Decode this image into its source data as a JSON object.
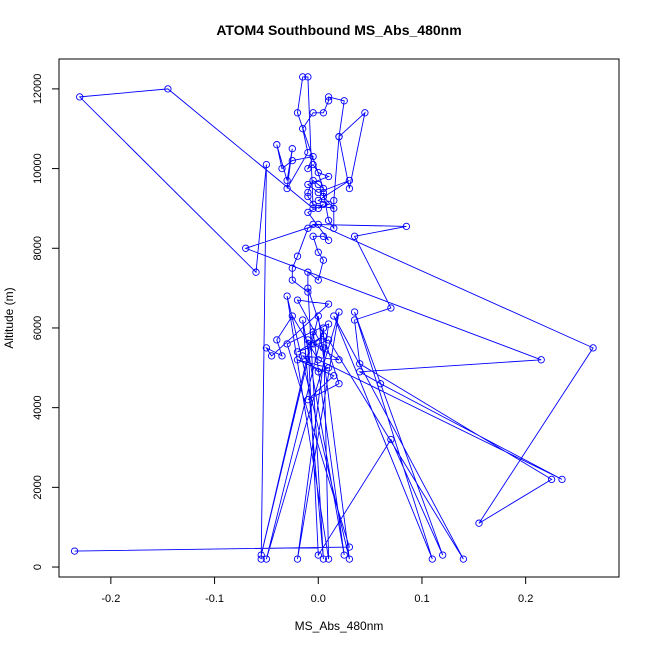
{
  "chart_data": {
    "type": "line",
    "title": "ATOM4 Southbound MS_Abs_480nm",
    "xlabel": "MS_Abs_480nm",
    "ylabel": "Altitude (m)",
    "xlim": [
      -0.25,
      0.29
    ],
    "ylim": [
      -250,
      12750
    ],
    "xticks": [
      -0.2,
      -0.1,
      0.0,
      0.1,
      0.2
    ],
    "xtick_labels": [
      "-0.2",
      "-0.1",
      "0.0",
      "0.1",
      "0.2"
    ],
    "yticks": [
      0,
      2000,
      4000,
      6000,
      8000,
      10000,
      12000
    ],
    "ytick_labels": [
      "0",
      "2000",
      "4000",
      "6000",
      "8000",
      "10000",
      "12000"
    ],
    "grid": false,
    "series": [
      {
        "color": "#0000ff",
        "marker": "open-circle",
        "points": [
          [
            -0.235,
            400
          ],
          [
            0.03,
            500
          ],
          [
            -0.03,
            5600
          ],
          [
            0.01,
            6100
          ],
          [
            -0.02,
            200
          ],
          [
            0.02,
            6400
          ],
          [
            -0.05,
            200
          ],
          [
            0.005,
            6000
          ],
          [
            0.01,
            200
          ],
          [
            -0.03,
            6800
          ],
          [
            0.03,
            200
          ],
          [
            0.0,
            6300
          ],
          [
            -0.055,
            300
          ],
          [
            -0.005,
            5900
          ],
          [
            0.025,
            300
          ],
          [
            -0.015,
            6200
          ],
          [
            0.005,
            200
          ],
          [
            -0.01,
            7000
          ],
          [
            0.02,
            4600
          ],
          [
            -0.01,
            4200
          ],
          [
            0.015,
            4800
          ],
          [
            -0.02,
            5200
          ],
          [
            0.01,
            5000
          ],
          [
            0.0,
            4900
          ],
          [
            -0.015,
            5300
          ],
          [
            0.02,
            5200
          ],
          [
            -0.005,
            5600
          ],
          [
            0.005,
            5800
          ],
          [
            -0.02,
            5400
          ],
          [
            0.01,
            5700
          ],
          [
            0.14,
            200
          ],
          [
            0.015,
            6300
          ],
          [
            0.11,
            200
          ],
          [
            0.035,
            6400
          ],
          [
            0.12,
            300
          ],
          [
            0.07,
            3200
          ],
          [
            0.0,
            300
          ],
          [
            -0.01,
            5700
          ],
          [
            0.005,
            5500
          ],
          [
            -0.02,
            6700
          ],
          [
            0.01,
            6600
          ],
          [
            -0.045,
            5300
          ],
          [
            -0.05,
            5500
          ],
          [
            -0.035,
            5300
          ],
          [
            -0.04,
            5700
          ],
          [
            -0.025,
            6300
          ],
          [
            0.0,
            5200
          ],
          [
            0.235,
            2200
          ],
          [
            0.06,
            4600
          ],
          [
            0.04,
            4900
          ],
          [
            0.215,
            5200
          ],
          [
            -0.07,
            8000
          ],
          [
            0.0,
            8600
          ],
          [
            0.265,
            5500
          ],
          [
            0.155,
            1100
          ],
          [
            0.225,
            2200
          ],
          [
            0.04,
            5100
          ],
          [
            0.035,
            6200
          ],
          [
            0.07,
            6500
          ],
          [
            0.035,
            8300
          ],
          [
            0.085,
            8550
          ],
          [
            -0.005,
            8600
          ],
          [
            -0.01,
            8500
          ],
          [
            -0.02,
            7800
          ],
          [
            -0.025,
            7500
          ],
          [
            -0.025,
            7200
          ],
          [
            -0.01,
            6900
          ],
          [
            -0.01,
            7400
          ],
          [
            0.0,
            7200
          ],
          [
            0.005,
            7700
          ],
          [
            0.0,
            7900
          ],
          [
            -0.005,
            8300
          ],
          [
            0.005,
            8300
          ],
          [
            0.01,
            8200
          ],
          [
            -0.01,
            8900
          ],
          [
            0.005,
            9100
          ],
          [
            0.0,
            9000
          ],
          [
            0.01,
            9100
          ],
          [
            0.0,
            9200
          ],
          [
            0.03,
            9700
          ],
          [
            0.0,
            9400
          ],
          [
            -0.01,
            9600
          ],
          [
            0.01,
            9800
          ],
          [
            0.0,
            9900
          ],
          [
            -0.005,
            10100
          ],
          [
            -0.01,
            10000
          ],
          [
            -0.005,
            10300
          ],
          [
            -0.025,
            10200
          ],
          [
            -0.035,
            10000
          ],
          [
            -0.04,
            10600
          ],
          [
            -0.03,
            9700
          ],
          [
            -0.025,
            10500
          ],
          [
            -0.03,
            9500
          ],
          [
            -0.01,
            10400
          ],
          [
            -0.015,
            11000
          ],
          [
            -0.005,
            11400
          ],
          [
            0.005,
            11400
          ],
          [
            0.01,
            11700
          ],
          [
            0.01,
            11800
          ],
          [
            0.025,
            11700
          ],
          [
            0.02,
            10800
          ],
          [
            0.045,
            11400
          ],
          [
            0.03,
            9500
          ],
          [
            0.02,
            10800
          ],
          [
            0.015,
            9200
          ],
          [
            0.015,
            8500
          ],
          [
            0.01,
            8700
          ],
          [
            0.005,
            9400
          ],
          [
            0.005,
            9300
          ],
          [
            0.015,
            9000
          ],
          [
            -0.005,
            9100
          ],
          [
            -0.01,
            9300
          ],
          [
            -0.01,
            9400
          ],
          [
            -0.005,
            9700
          ],
          [
            0.0,
            9600
          ],
          [
            0.005,
            9500
          ],
          [
            -0.02,
            11400
          ],
          [
            -0.015,
            12300
          ],
          [
            -0.01,
            12300
          ],
          [
            -0.005,
            9000
          ],
          [
            -0.145,
            12000
          ],
          [
            -0.23,
            11800
          ],
          [
            -0.06,
            7400
          ],
          [
            -0.05,
            10100
          ],
          [
            -0.055,
            200
          ]
        ]
      }
    ]
  }
}
